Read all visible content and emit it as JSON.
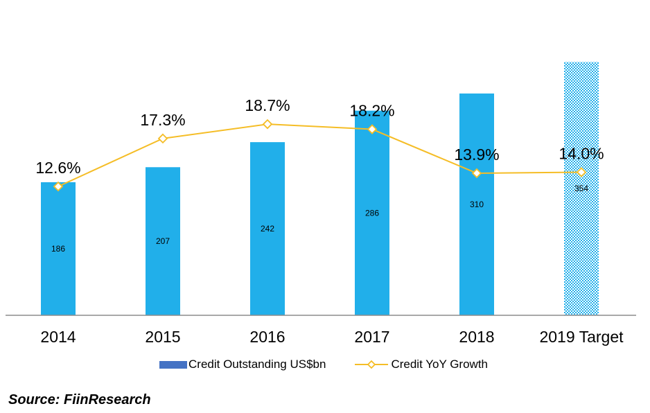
{
  "chart_data": {
    "type": "bar",
    "categories": [
      "2014",
      "2015",
      "2016",
      "2017",
      "2018",
      "2019 Target"
    ],
    "series": [
      {
        "name": "Credit Outstanding US$bn",
        "type": "bar",
        "values": [
          186,
          207,
          242,
          286,
          310,
          354
        ],
        "value_labels": [
          "186",
          "207",
          "242",
          "286",
          "310",
          "354"
        ],
        "color": "#21AFEA",
        "last_point_pattern": "hatched"
      },
      {
        "name": "Credit YoY Growth",
        "type": "line",
        "values": [
          12.6,
          17.3,
          18.7,
          18.2,
          13.9,
          14.0
        ],
        "value_labels": [
          "12.6%",
          "17.3%",
          "18.7%",
          "18.2%",
          "13.9%",
          "14.0%"
        ],
        "color": "#F5BD26",
        "marker": "diamond"
      }
    ],
    "y_left_range": [
      0,
      400
    ],
    "y_right_range": [
      0,
      28
    ],
    "grid": false,
    "legend": {
      "position": "bottom",
      "bar_swatch_color": "#4472C4",
      "line_swatch_color": "#F5BD26"
    },
    "source": "Source: FiinResearch"
  }
}
